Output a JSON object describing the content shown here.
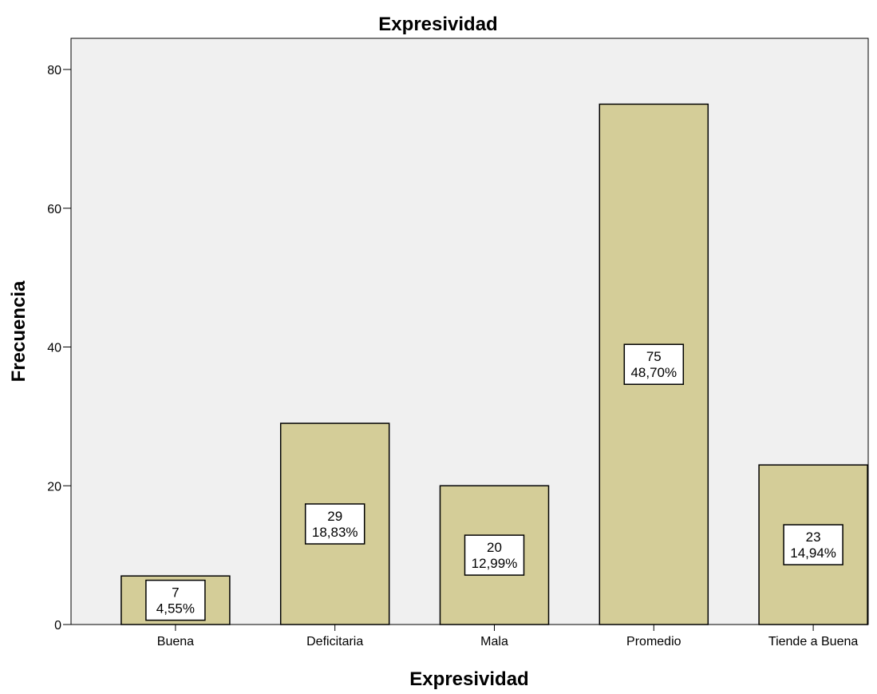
{
  "chart_data": {
    "type": "bar",
    "title": "Expresividad",
    "xlabel": "Expresividad",
    "ylabel": "Frecuencia",
    "categories": [
      "Buena",
      "Deficitaria",
      "Mala",
      "Promedio",
      "Tiende a Buena"
    ],
    "values": [
      7,
      29,
      20,
      75,
      23
    ],
    "percent_labels": [
      "4,55%",
      "18,83%",
      "12,99%",
      "48,70%",
      "14,94%"
    ],
    "yticks": [
      0,
      20,
      40,
      60,
      80
    ],
    "ylim": [
      0,
      80
    ],
    "grid": false,
    "legend": "none",
    "colors": {
      "bar_fill": "#d4cd98",
      "plot_background": "#f0f0f0",
      "stroke": "#000000"
    }
  }
}
